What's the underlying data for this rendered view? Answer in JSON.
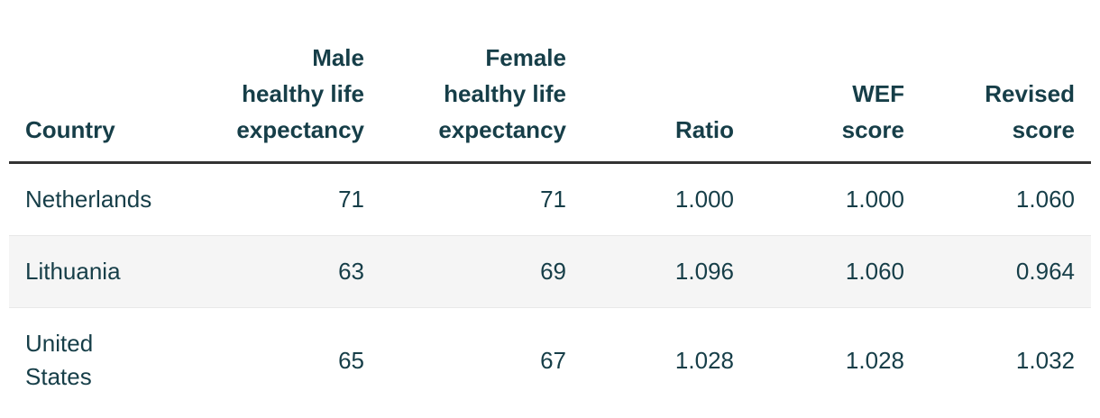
{
  "colors": {
    "header_text": "#163e48",
    "body_text": "#163e48",
    "header_rule": "#333333",
    "row_divider": "#e8e8e8",
    "stripe_background": "#f5f5f5",
    "page_background": "#ffffff"
  },
  "table": {
    "columns": [
      {
        "key": "country",
        "label": "Country",
        "label_lines": [
          "Country"
        ]
      },
      {
        "key": "male_hle",
        "label": "Male healthy life expectancy",
        "label_lines": [
          "Male",
          "healthy life",
          "expectancy"
        ]
      },
      {
        "key": "female_hle",
        "label": "Female healthy life expectancy",
        "label_lines": [
          "Female",
          "healthy life",
          "expectancy"
        ]
      },
      {
        "key": "ratio",
        "label": "Ratio",
        "label_lines": [
          "Ratio"
        ]
      },
      {
        "key": "wef_score",
        "label": "WEF score",
        "label_lines": [
          "WEF",
          "score"
        ]
      },
      {
        "key": "revised_score",
        "label": "Revised score",
        "label_lines": [
          "Revised",
          "score"
        ]
      }
    ],
    "rows": [
      {
        "country": "Netherlands",
        "values": [
          "71",
          "71",
          "1.000",
          "1.000",
          "1.060"
        ]
      },
      {
        "country": "Lithuania",
        "values": [
          "63",
          "69",
          "1.096",
          "1.060",
          "0.964"
        ]
      },
      {
        "country": "United States",
        "values": [
          "65",
          "67",
          "1.028",
          "1.028",
          "1.032"
        ]
      }
    ]
  },
  "chart_data": {
    "type": "table",
    "title": "",
    "columns": [
      "Country",
      "Male healthy life expectancy",
      "Female healthy life expectancy",
      "Ratio",
      "WEF score",
      "Revised score"
    ],
    "rows": [
      [
        "Netherlands",
        71,
        71,
        1.0,
        1.0,
        1.06
      ],
      [
        "Lithuania",
        63,
        69,
        1.096,
        1.06,
        0.964
      ],
      [
        "United States",
        65,
        67,
        1.028,
        1.028,
        1.032
      ]
    ],
    "layout_hints": {
      "numeric_columns_aligned": "right",
      "striped_row": "Lithuania",
      "header_rule": "thick dark line below header",
      "grid": "off"
    }
  }
}
